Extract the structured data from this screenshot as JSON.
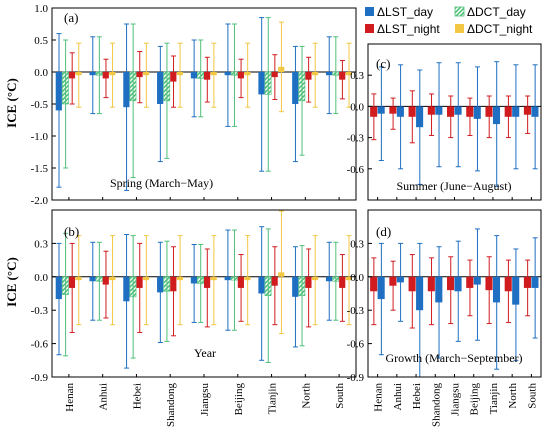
{
  "legend": [
    {
      "label": "ΔLST_day",
      "color": "#1f6fc2",
      "hatch": false
    },
    {
      "label": "ΔDCT_day",
      "color": "#4fc07a",
      "hatch": true
    },
    {
      "label": "ΔLST_night",
      "color": "#d01c1f",
      "hatch": false
    },
    {
      "label": "ΔDCT_night",
      "color": "#f2c744",
      "hatch": false
    }
  ],
  "colors": {
    "lst_day": "#1f6fc2",
    "dct_day": "#4fc07a",
    "lst_night": "#d01c1f",
    "dct_night": "#f2c744"
  },
  "ylabel": "ICE (°C)",
  "categories": [
    "Henan",
    "Anhui",
    "Hebei",
    "Shandong",
    "Jiangsu",
    "Beijing",
    "Tianjin",
    "North",
    "South"
  ],
  "chart_data": [
    {
      "type": "bar",
      "panel": "(a)",
      "note": "Spring (March−May)",
      "ylim": [
        -2.0,
        1.0
      ],
      "yticks": [
        "1.0",
        "0.5",
        "0.0",
        "-0.5",
        "-1.0",
        "-1.5",
        "-2.0"
      ],
      "categories": [
        "Henan",
        "Anhui",
        "Hebei",
        "Shandong",
        "Jiangsu",
        "Beijing",
        "Tianjin",
        "North",
        "South"
      ],
      "series": [
        {
          "name": "ΔLST_day",
          "values": [
            -0.6,
            -0.05,
            -0.55,
            -0.5,
            -0.1,
            -0.05,
            -0.35,
            -0.5,
            -0.05
          ],
          "err": [
            1.2,
            0.6,
            1.3,
            0.9,
            0.6,
            0.8,
            1.2,
            0.9,
            0.6
          ]
        },
        {
          "name": "ΔDCT_day",
          "values": [
            -0.5,
            -0.05,
            -0.45,
            -0.45,
            -0.1,
            -0.05,
            -0.35,
            -0.45,
            -0.05
          ],
          "err": [
            1.0,
            0.6,
            1.2,
            0.9,
            0.6,
            0.8,
            1.2,
            0.85,
            0.6
          ]
        },
        {
          "name": "ΔLST_night",
          "values": [
            -0.1,
            -0.1,
            -0.08,
            -0.15,
            -0.12,
            -0.1,
            -0.08,
            -0.12,
            -0.12
          ],
          "err": [
            0.4,
            0.3,
            0.4,
            0.4,
            0.35,
            0.3,
            0.35,
            0.35,
            0.3
          ]
        },
        {
          "name": "ΔDCT_night",
          "values": [
            -0.05,
            -0.05,
            -0.05,
            -0.05,
            -0.05,
            -0.05,
            0.08,
            -0.05,
            -0.05
          ],
          "err": [
            0.5,
            0.5,
            0.5,
            0.5,
            0.5,
            0.5,
            0.7,
            0.5,
            0.5
          ]
        }
      ]
    },
    {
      "type": "bar",
      "panel": "(b)",
      "note": "Year",
      "ylim": [
        -0.9,
        0.6
      ],
      "yticks": [
        "0.3",
        "0.0",
        "-0.3",
        "-0.6",
        "-0.9"
      ],
      "categories": [
        "Henan",
        "Anhui",
        "Hebei",
        "Shandong",
        "Jiangsu",
        "Beijing",
        "Tianjin",
        "North",
        "South"
      ],
      "series": [
        {
          "name": "ΔLST_day",
          "values": [
            -0.2,
            -0.04,
            -0.22,
            -0.14,
            -0.06,
            -0.03,
            -0.15,
            -0.18,
            -0.04
          ],
          "err": [
            0.5,
            0.35,
            0.6,
            0.45,
            0.35,
            0.45,
            0.6,
            0.45,
            0.35
          ]
        },
        {
          "name": "ΔDCT_day",
          "values": [
            -0.16,
            -0.04,
            -0.18,
            -0.13,
            -0.06,
            -0.03,
            -0.17,
            -0.17,
            -0.04
          ],
          "err": [
            0.55,
            0.35,
            0.55,
            0.45,
            0.35,
            0.45,
            0.6,
            0.45,
            0.35
          ]
        },
        {
          "name": "ΔLST_night",
          "values": [
            -0.1,
            -0.07,
            -0.1,
            -0.13,
            -0.1,
            -0.1,
            -0.08,
            -0.1,
            -0.1
          ],
          "err": [
            0.4,
            0.3,
            0.4,
            0.4,
            0.35,
            0.3,
            0.35,
            0.35,
            0.3
          ]
        },
        {
          "name": "ΔDCT_night",
          "values": [
            -0.03,
            -0.03,
            -0.03,
            -0.03,
            -0.03,
            -0.03,
            0.04,
            -0.03,
            -0.03
          ],
          "err": [
            0.4,
            0.4,
            0.4,
            0.4,
            0.4,
            0.4,
            0.55,
            0.4,
            0.4
          ]
        }
      ]
    },
    {
      "type": "bar",
      "panel": "(c)",
      "note": "Summer (June−August)",
      "ylim": [
        -0.9,
        0.6
      ],
      "yticks": [
        "0.3",
        "0.0",
        "-0.3",
        "-0.6"
      ],
      "categories": [
        "Henan",
        "Anhui",
        "Hebei",
        "Shandong",
        "Jiangsu",
        "Beijing",
        "Tianjin",
        "North",
        "South"
      ],
      "series": [
        {
          "name": "ΔLST_night",
          "values": [
            -0.1,
            -0.07,
            -0.1,
            -0.08,
            -0.1,
            -0.1,
            -0.1,
            -0.1,
            -0.08
          ],
          "err": [
            0.22,
            0.15,
            0.25,
            0.2,
            0.2,
            0.18,
            0.2,
            0.2,
            0.18
          ]
        },
        {
          "name": "ΔLST_day",
          "values": [
            -0.07,
            -0.1,
            -0.2,
            -0.08,
            -0.08,
            -0.12,
            -0.17,
            -0.1,
            -0.1
          ],
          "err": [
            0.45,
            0.5,
            0.55,
            0.5,
            0.5,
            0.5,
            0.6,
            0.5,
            0.5
          ]
        }
      ]
    },
    {
      "type": "bar",
      "panel": "(d)",
      "note": "Growth (March−September)",
      "ylim": [
        -0.9,
        0.6
      ],
      "yticks": [
        "0.3",
        "0.0",
        "-0.3",
        "-0.6",
        "-0.9"
      ],
      "categories": [
        "Henan",
        "Anhui",
        "Hebei",
        "Shandong",
        "Jiangsu",
        "Beijing",
        "Tianjin",
        "North",
        "South"
      ],
      "series": [
        {
          "name": "ΔLST_night",
          "values": [
            -0.13,
            -0.08,
            -0.13,
            -0.13,
            -0.12,
            -0.1,
            -0.12,
            -0.13,
            -0.1
          ],
          "err": [
            0.3,
            0.22,
            0.33,
            0.3,
            0.3,
            0.25,
            0.3,
            0.28,
            0.25
          ]
        },
        {
          "name": "ΔLST_day",
          "values": [
            -0.2,
            -0.05,
            -0.3,
            -0.23,
            -0.13,
            -0.07,
            -0.23,
            -0.25,
            -0.1
          ],
          "err": [
            0.5,
            0.35,
            0.6,
            0.5,
            0.45,
            0.5,
            0.6,
            0.5,
            0.45
          ]
        }
      ]
    }
  ]
}
